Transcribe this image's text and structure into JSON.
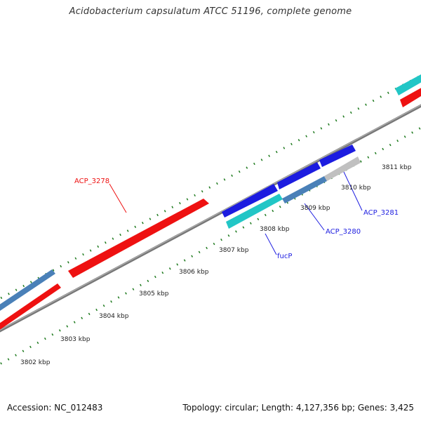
{
  "title": "Acidobacterium capsulatum ATCC 51196, complete genome",
  "footer": {
    "accession": "Accession: NC_012483",
    "summary": "Topology: circular; Length: 4,127,356 bp; Genes: 3,425"
  },
  "colors": {
    "backbone": "#888888",
    "tick": "#1e7a1e",
    "red": "#ee1111",
    "blue": "#1c1ce0",
    "steel": "#4a80b8",
    "cyan": "#22c6c6",
    "gray": "#c0c0c0"
  },
  "tick_labels": [
    {
      "text": "3802 kbp"
    },
    {
      "text": "3803 kbp"
    },
    {
      "text": "3804 kbp"
    },
    {
      "text": "3805 kbp"
    },
    {
      "text": "3806 kbp"
    },
    {
      "text": "3807 kbp"
    },
    {
      "text": "3808 kbp"
    },
    {
      "text": "3809 kbp"
    },
    {
      "text": "3810 kbp"
    },
    {
      "text": "3811 kbp"
    }
  ],
  "gene_labels": [
    {
      "text": "ACP_3278",
      "color": "#ee1111"
    },
    {
      "text": "fucP",
      "color": "#1c1ce0"
    },
    {
      "text": "ACP_3280",
      "color": "#1c1ce0"
    },
    {
      "text": "ACP_3281",
      "color": "#1c1ce0"
    }
  ]
}
